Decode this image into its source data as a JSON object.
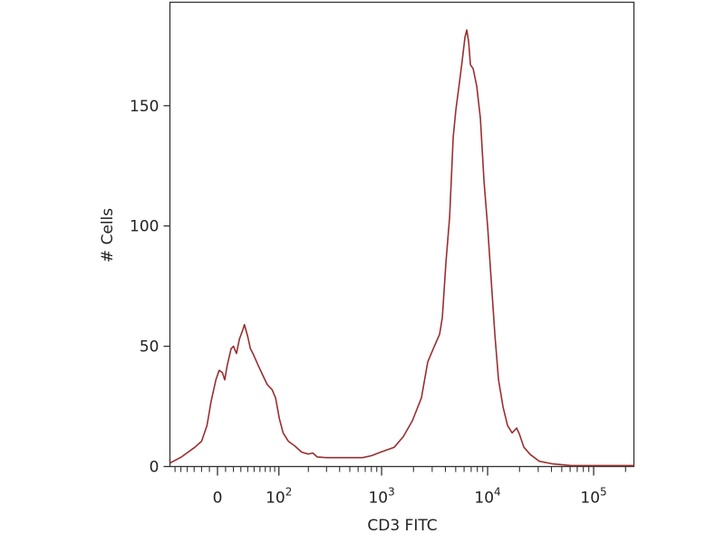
{
  "chart_data": {
    "type": "line",
    "title": "",
    "xlabel": "CD3 FITC",
    "ylabel": "# Cells",
    "x_scale": "biexponential",
    "xlim": [
      -70,
      241000
    ],
    "ylim": [
      0,
      193
    ],
    "grid": false,
    "line_color": "#9a2f2f",
    "y_ticks": [
      {
        "value": 0,
        "label": "0"
      },
      {
        "value": 50,
        "label": "50"
      },
      {
        "value": 100,
        "label": "100"
      },
      {
        "value": 150,
        "label": "150"
      }
    ],
    "x_ticks": [
      {
        "value": 0,
        "base": "0",
        "exp": ""
      },
      {
        "value": 100,
        "base": "10",
        "exp": "2"
      },
      {
        "value": 1000,
        "base": "10",
        "exp": "3"
      },
      {
        "value": 10000,
        "base": "10",
        "exp": "4"
      },
      {
        "value": 100000,
        "base": "10",
        "exp": "5"
      }
    ],
    "series": [
      {
        "x": [
          -69,
          -49,
          -29,
          -20,
          -13,
          -8,
          -2,
          2,
          6,
          9,
          12,
          17,
          20,
          24,
          28,
          33,
          35,
          40,
          44,
          49,
          57,
          65,
          74,
          84,
          92,
          101,
          111,
          126,
          146,
          172,
          199,
          221,
          244,
          298,
          445,
          661,
          804,
          979,
          1316,
          1603,
          1952,
          2376,
          2727,
          3072,
          3528,
          3743,
          4050,
          4380,
          4737,
          5025,
          5438,
          5768,
          6120,
          6363,
          6619,
          6885,
          7305,
          7906,
          8556,
          9253,
          10012,
          10826,
          11714,
          12670,
          13984,
          15433,
          17033,
          18792,
          19951,
          22013,
          25250,
          30750,
          41300,
          61200,
          241000
        ],
        "y": [
          1.5,
          4,
          8,
          10.5,
          17,
          27,
          36,
          40,
          39,
          36,
          42,
          49,
          50,
          47,
          53,
          57,
          59,
          54,
          49,
          46.5,
          42,
          38,
          34,
          32,
          28.5,
          20,
          14,
          10.5,
          8.6,
          6,
          5.2,
          5.6,
          4,
          3.7,
          3.7,
          3.7,
          4.5,
          6,
          8,
          12.4,
          19,
          28.5,
          43.5,
          49,
          55,
          62,
          85,
          103.5,
          137,
          148.5,
          160,
          169,
          178.5,
          181.5,
          176.6,
          167,
          165.4,
          158,
          144.7,
          118.5,
          99.7,
          77,
          54.7,
          36,
          24.7,
          17,
          14,
          16,
          13.5,
          8,
          5,
          2.2,
          1.1,
          0.4,
          0.4
        ]
      }
    ]
  }
}
